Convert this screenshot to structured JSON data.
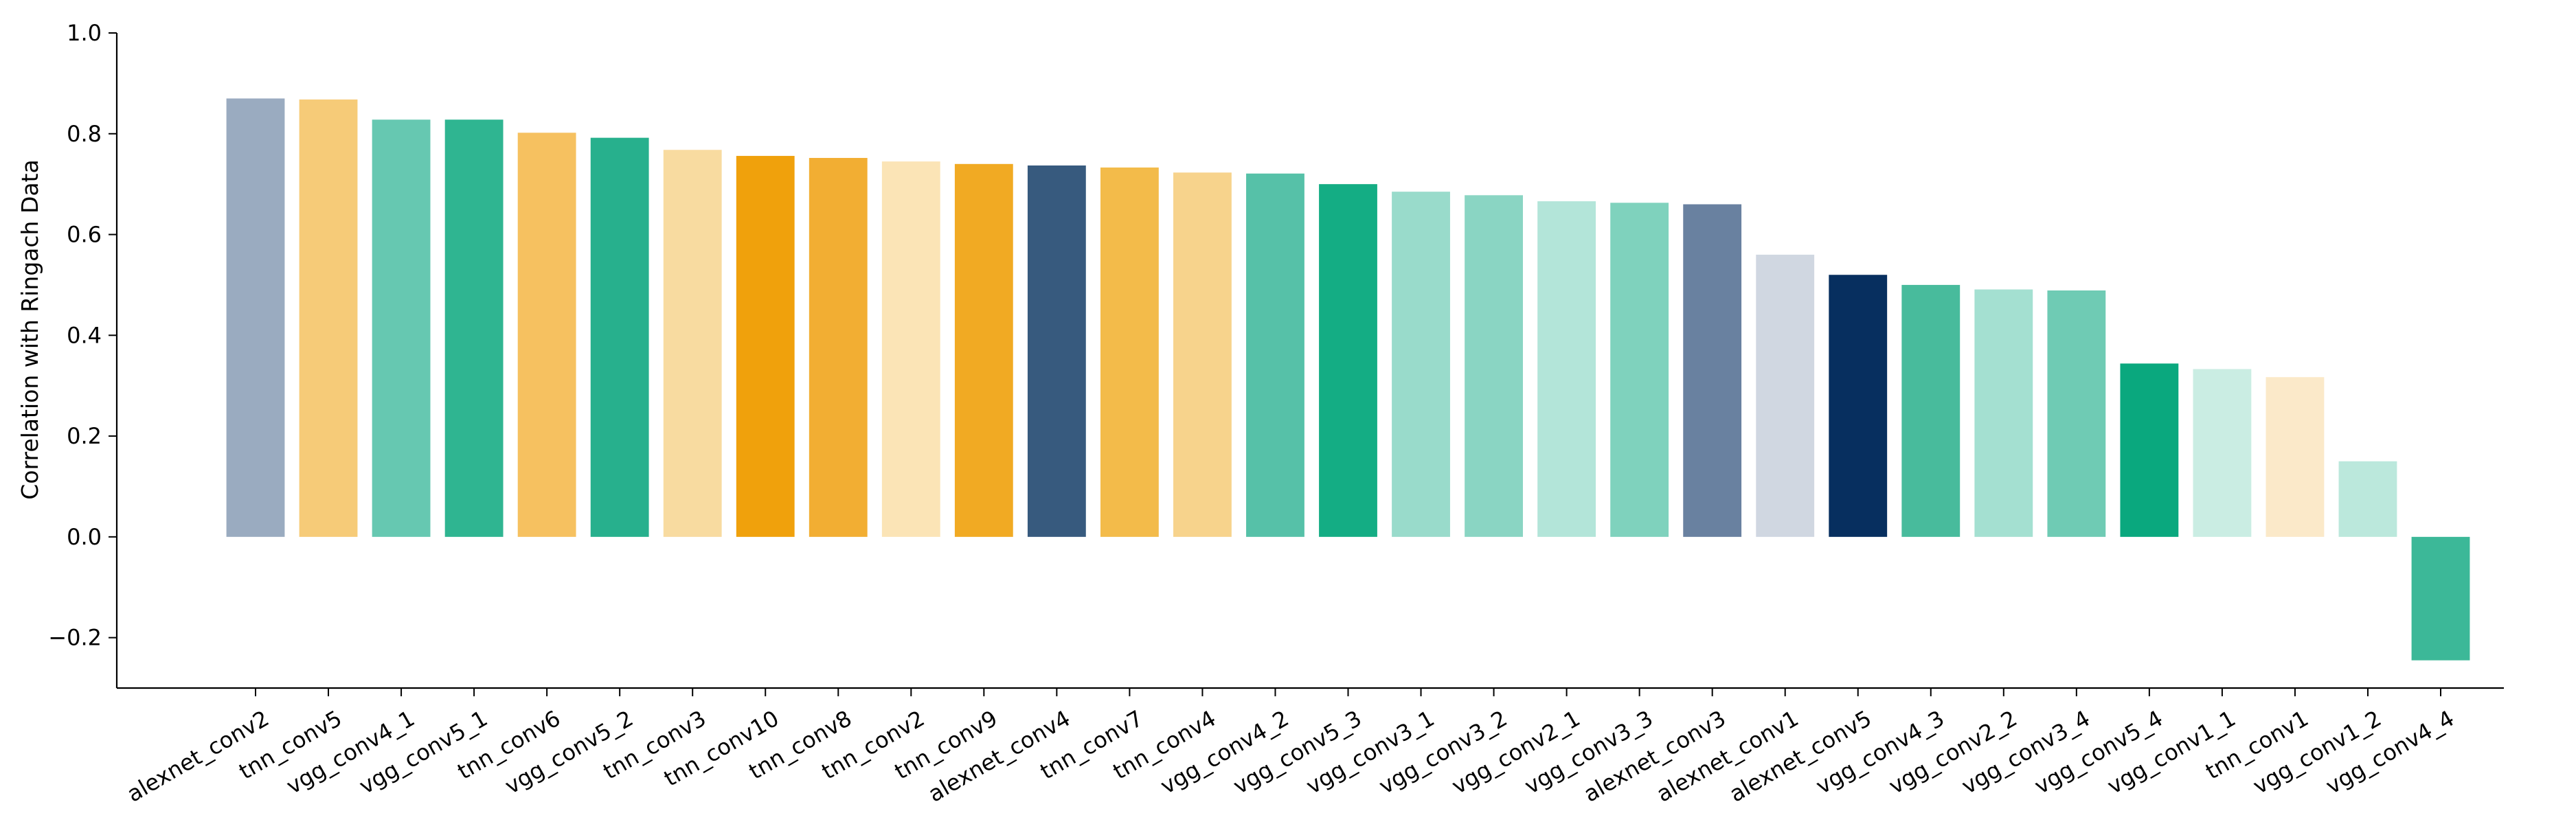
{
  "chart_data": {
    "type": "bar",
    "title": "",
    "xlabel": "",
    "ylabel": "Correlation with Ringach Data",
    "ylim": [
      -0.3,
      1.0
    ],
    "yticks": [
      -0.2,
      0.0,
      0.2,
      0.4,
      0.6,
      0.8,
      1.0
    ],
    "ytick_labels": [
      "−0.2",
      "0.0",
      "0.2",
      "0.4",
      "0.6",
      "0.8",
      "1.0"
    ],
    "grid": false,
    "legend": "none",
    "categories": [
      "alexnet_conv2",
      "tnn_conv5",
      "vgg_conv4_1",
      "vgg_conv5_1",
      "tnn_conv6",
      "vgg_conv5_2",
      "tnn_conv3",
      "tnn_conv10",
      "tnn_conv8",
      "tnn_conv2",
      "tnn_conv9",
      "alexnet_conv4",
      "tnn_conv7",
      "tnn_conv4",
      "vgg_conv4_2",
      "vgg_conv5_3",
      "vgg_conv3_1",
      "vgg_conv3_2",
      "vgg_conv2_1",
      "vgg_conv3_3",
      "alexnet_conv3",
      "alexnet_conv1",
      "alexnet_conv5",
      "vgg_conv4_3",
      "vgg_conv2_2",
      "vgg_conv3_4",
      "vgg_conv5_4",
      "vgg_conv1_1",
      "tnn_conv1",
      "vgg_conv1_2",
      "vgg_conv4_4"
    ],
    "values": [
      0.87,
      0.868,
      0.828,
      0.828,
      0.802,
      0.792,
      0.768,
      0.756,
      0.752,
      0.745,
      0.74,
      0.737,
      0.733,
      0.723,
      0.721,
      0.7,
      0.685,
      0.678,
      0.666,
      0.663,
      0.66,
      0.56,
      0.52,
      0.5,
      0.491,
      0.489,
      0.344,
      0.333,
      0.317,
      0.15,
      -0.245
    ],
    "colors": [
      "#9aabc0",
      "#f6cb78",
      "#66c8b1",
      "#2fb591",
      "#f6c160",
      "#27b08d",
      "#f8dba0",
      "#f0a10c",
      "#f2ae33",
      "#fbe4b6",
      "#f1aa23",
      "#375a7e",
      "#f3bb4a",
      "#f7d38c",
      "#56c1a8",
      "#14ad84",
      "#99dbcb",
      "#8ad5c3",
      "#b3e5d9",
      "#7fd2bd",
      "#6981a0",
      "#d0d7e1",
      "#072f5f",
      "#48bb9c",
      "#a4e0d1",
      "#6fcbb4",
      "#0aa87e",
      "#caede3",
      "#fbe9c9",
      "#bbe8dc",
      "#3cb898"
    ]
  }
}
